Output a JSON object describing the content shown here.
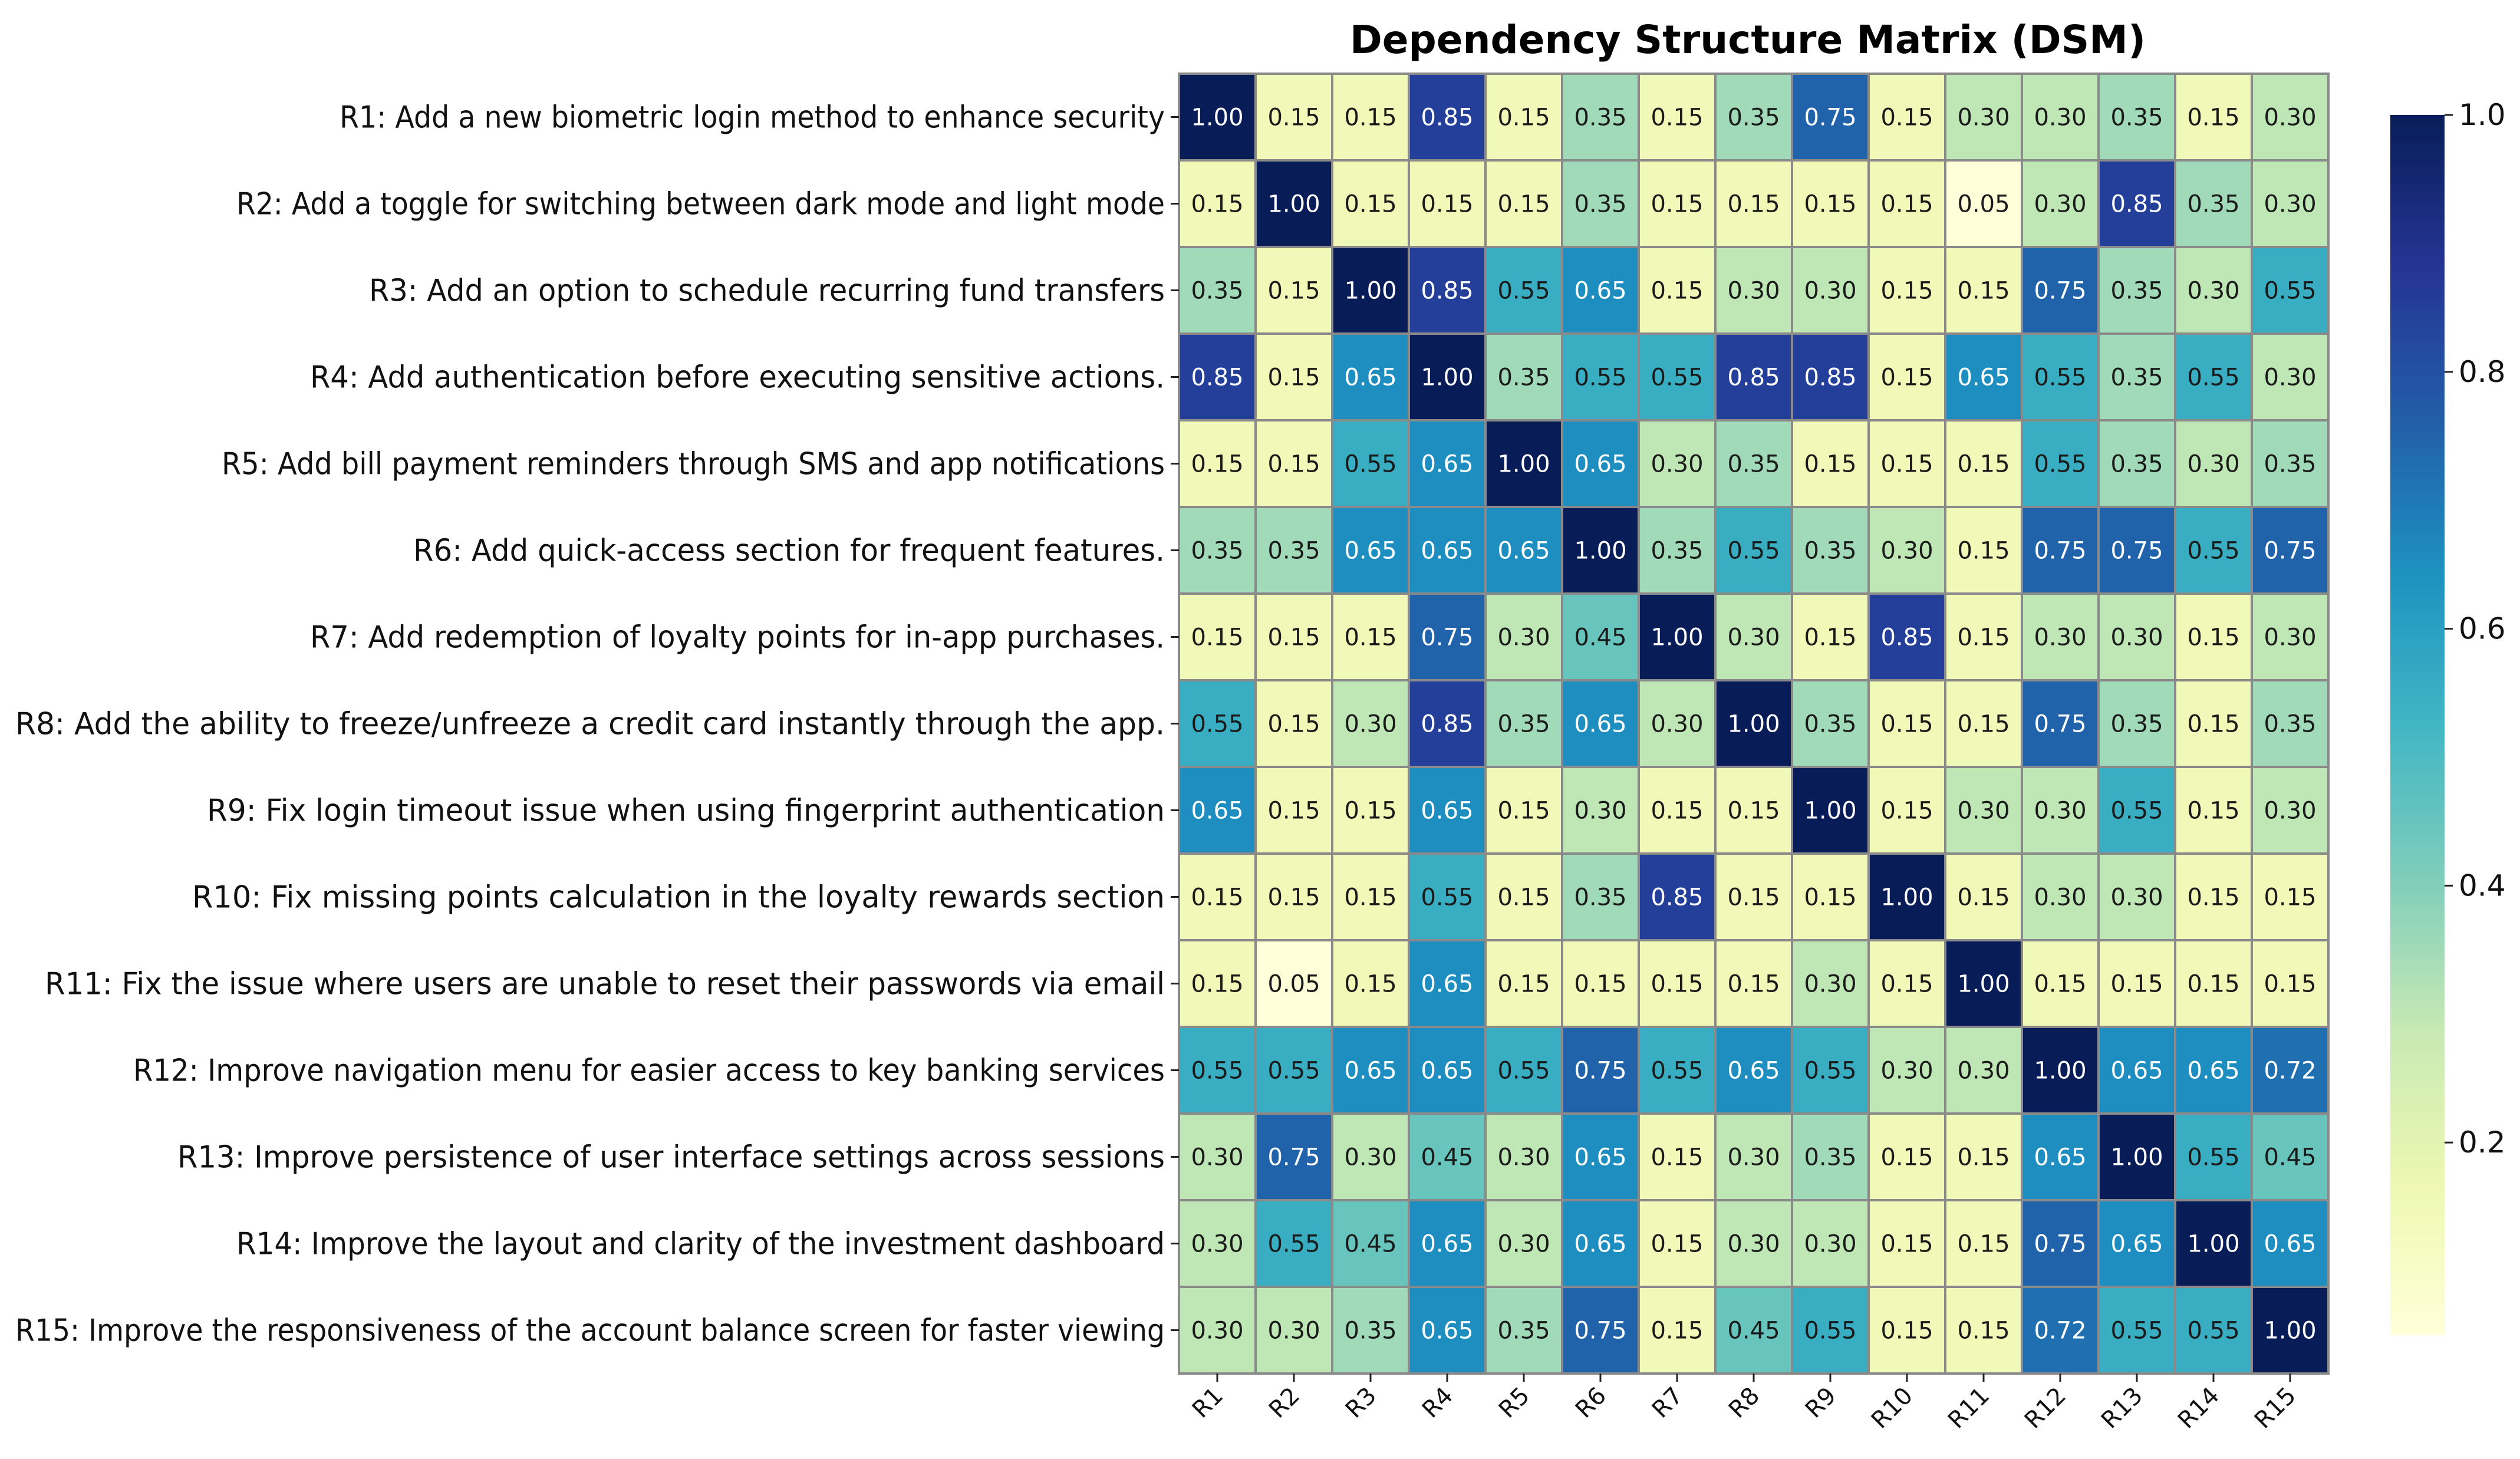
{
  "chart_data": {
    "type": "heatmap",
    "title": "Dependency Structure Matrix (DSM)",
    "row_labels": [
      "R1: Add a new biometric login method to enhance security",
      "R2: Add a toggle for switching between dark mode and light mode",
      "R3: Add an option to schedule recurring fund transfers",
      "R4: Add authentication before executing sensitive actions.",
      "R5: Add bill payment reminders through SMS and app notifications",
      "R6: Add quick-access section for frequent features.",
      "R7: Add redemption of loyalty points for in-app purchases.",
      "R8: Add the ability to freeze/unfreeze a credit card instantly through the app.",
      "R9: Fix login timeout issue when using fingerprint authentication",
      "R10: Fix missing points calculation in the loyalty rewards section",
      "R11: Fix the issue where users are unable to reset their passwords via email",
      "R12: Improve navigation menu for easier access to key banking services",
      "R13: Improve persistence of user interface settings across sessions",
      "R14: Improve the layout and clarity of the investment dashboard",
      "R15: Improve the responsiveness of the account balance screen for faster viewing"
    ],
    "col_labels": [
      "R1",
      "R2",
      "R3",
      "R4",
      "R5",
      "R6",
      "R7",
      "R8",
      "R9",
      "R10",
      "R11",
      "R12",
      "R13",
      "R14",
      "R15"
    ],
    "values": [
      [
        1.0,
        0.15,
        0.15,
        0.85,
        0.15,
        0.35,
        0.15,
        0.35,
        0.75,
        0.15,
        0.3,
        0.3,
        0.35,
        0.15,
        0.3
      ],
      [
        0.15,
        1.0,
        0.15,
        0.15,
        0.15,
        0.35,
        0.15,
        0.15,
        0.15,
        0.15,
        0.05,
        0.3,
        0.85,
        0.35,
        0.3
      ],
      [
        0.35,
        0.15,
        1.0,
        0.85,
        0.55,
        0.65,
        0.15,
        0.3,
        0.3,
        0.15,
        0.15,
        0.75,
        0.35,
        0.3,
        0.55
      ],
      [
        0.85,
        0.15,
        0.65,
        1.0,
        0.35,
        0.55,
        0.55,
        0.85,
        0.85,
        0.15,
        0.65,
        0.55,
        0.35,
        0.55,
        0.3
      ],
      [
        0.15,
        0.15,
        0.55,
        0.65,
        1.0,
        0.65,
        0.3,
        0.35,
        0.15,
        0.15,
        0.15,
        0.55,
        0.35,
        0.3,
        0.35
      ],
      [
        0.35,
        0.35,
        0.65,
        0.65,
        0.65,
        1.0,
        0.35,
        0.55,
        0.35,
        0.3,
        0.15,
        0.75,
        0.75,
        0.55,
        0.75
      ],
      [
        0.15,
        0.15,
        0.15,
        0.75,
        0.3,
        0.45,
        1.0,
        0.3,
        0.15,
        0.85,
        0.15,
        0.3,
        0.3,
        0.15,
        0.3
      ],
      [
        0.55,
        0.15,
        0.3,
        0.85,
        0.35,
        0.65,
        0.3,
        1.0,
        0.35,
        0.15,
        0.15,
        0.75,
        0.35,
        0.15,
        0.35
      ],
      [
        0.65,
        0.15,
        0.15,
        0.65,
        0.15,
        0.3,
        0.15,
        0.15,
        1.0,
        0.15,
        0.3,
        0.3,
        0.55,
        0.15,
        0.3
      ],
      [
        0.15,
        0.15,
        0.15,
        0.55,
        0.15,
        0.35,
        0.85,
        0.15,
        0.15,
        1.0,
        0.15,
        0.3,
        0.3,
        0.15,
        0.15
      ],
      [
        0.15,
        0.05,
        0.15,
        0.65,
        0.15,
        0.15,
        0.15,
        0.15,
        0.3,
        0.15,
        1.0,
        0.15,
        0.15,
        0.15,
        0.15
      ],
      [
        0.55,
        0.55,
        0.65,
        0.65,
        0.55,
        0.75,
        0.55,
        0.65,
        0.55,
        0.3,
        0.3,
        1.0,
        0.65,
        0.65,
        0.72
      ],
      [
        0.3,
        0.75,
        0.3,
        0.45,
        0.3,
        0.65,
        0.15,
        0.3,
        0.35,
        0.15,
        0.15,
        0.65,
        1.0,
        0.55,
        0.45
      ],
      [
        0.3,
        0.55,
        0.45,
        0.65,
        0.3,
        0.65,
        0.15,
        0.3,
        0.3,
        0.15,
        0.15,
        0.75,
        0.65,
        1.0,
        0.65
      ],
      [
        0.3,
        0.3,
        0.35,
        0.65,
        0.35,
        0.75,
        0.15,
        0.45,
        0.55,
        0.15,
        0.15,
        0.72,
        0.55,
        0.55,
        1.0
      ]
    ],
    "colormap": "YlGnBu",
    "colorbar": {
      "vmin": 0.05,
      "vmax": 1.0,
      "ticks": [
        "0.2",
        "0.4",
        "0.6",
        "0.8",
        "1.0"
      ],
      "tick_values": [
        0.2,
        0.4,
        0.6,
        0.8,
        1.0
      ]
    },
    "value_format": "0.00"
  },
  "colors": {
    "cell_border": "#8a8a8a",
    "stops": [
      "#ffffd9",
      "#edf8b1",
      "#c7e9b4",
      "#7fcdbb",
      "#41b6c4",
      "#1d91c0",
      "#225ea8",
      "#253494",
      "#081d58"
    ]
  }
}
